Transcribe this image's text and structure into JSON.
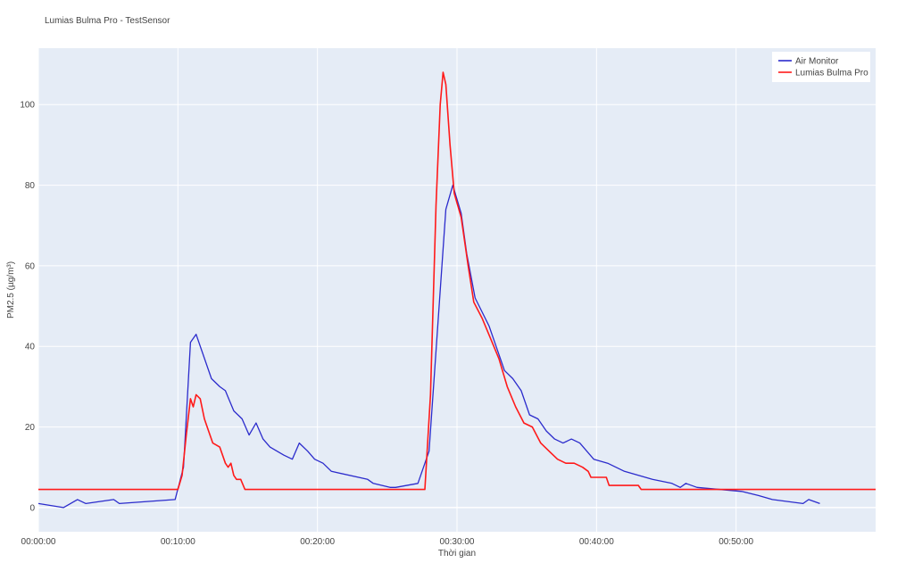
{
  "chart_data": {
    "type": "line",
    "title": "Lumias Bulma Pro - TestSensor",
    "xlabel": "Thời gian",
    "ylabel": "PM2.5 (µg/m³)",
    "xlim_minutes": [
      0,
      60
    ],
    "ylim": [
      -6,
      114
    ],
    "x_ticks": [
      {
        "value": 0,
        "label": "00:00:00"
      },
      {
        "value": 10,
        "label": "00:10:00"
      },
      {
        "value": 20,
        "label": "00:20:00"
      },
      {
        "value": 30,
        "label": "00:30:00"
      },
      {
        "value": 40,
        "label": "00:40:00"
      },
      {
        "value": 50,
        "label": "00:50:00"
      }
    ],
    "y_ticks": [
      0,
      20,
      40,
      60,
      80,
      100
    ],
    "grid": true,
    "legend_position": "top-right",
    "series": [
      {
        "name": "Air Monitor",
        "color": "#2b2bcc",
        "points": [
          [
            0,
            1
          ],
          [
            1.8,
            0
          ],
          [
            2.8,
            2
          ],
          [
            3.4,
            1
          ],
          [
            5.4,
            2
          ],
          [
            5.8,
            1
          ],
          [
            9.8,
            2
          ],
          [
            10.4,
            10
          ],
          [
            10.9,
            41
          ],
          [
            11.3,
            43
          ],
          [
            12.4,
            32
          ],
          [
            13.0,
            30
          ],
          [
            13.4,
            29
          ],
          [
            14.0,
            24
          ],
          [
            14.6,
            22
          ],
          [
            15.1,
            18
          ],
          [
            15.6,
            21
          ],
          [
            16.1,
            17
          ],
          [
            16.6,
            15
          ],
          [
            17.6,
            13
          ],
          [
            18.2,
            12
          ],
          [
            18.7,
            16
          ],
          [
            19.3,
            14
          ],
          [
            19.8,
            12
          ],
          [
            20.4,
            11
          ],
          [
            21.0,
            9
          ],
          [
            23.6,
            7
          ],
          [
            24.0,
            6
          ],
          [
            25.2,
            5
          ],
          [
            25.6,
            5
          ],
          [
            27.2,
            6
          ],
          [
            28.0,
            14
          ],
          [
            29.2,
            74
          ],
          [
            29.7,
            80
          ],
          [
            30.3,
            73
          ],
          [
            30.7,
            63
          ],
          [
            31.3,
            52
          ],
          [
            32.3,
            45
          ],
          [
            33.4,
            34
          ],
          [
            34.0,
            32
          ],
          [
            34.6,
            29
          ],
          [
            35.2,
            23
          ],
          [
            35.8,
            22
          ],
          [
            36.4,
            19
          ],
          [
            37.0,
            17
          ],
          [
            37.6,
            16
          ],
          [
            38.2,
            17
          ],
          [
            38.8,
            16
          ],
          [
            39.8,
            12
          ],
          [
            40.8,
            11
          ],
          [
            42.0,
            9
          ],
          [
            44.0,
            7
          ],
          [
            45.4,
            6
          ],
          [
            46.0,
            5
          ],
          [
            46.4,
            6
          ],
          [
            47.2,
            5
          ],
          [
            50.4,
            4
          ],
          [
            51.6,
            3
          ],
          [
            52.6,
            2
          ],
          [
            54.8,
            1
          ],
          [
            55.2,
            2
          ],
          [
            56.0,
            1
          ]
        ]
      },
      {
        "name": "Lumias Bulma Pro",
        "color": "#ff1a1a",
        "points": [
          [
            0,
            4.5
          ],
          [
            10.0,
            4.5
          ],
          [
            10.3,
            8
          ],
          [
            10.6,
            18
          ],
          [
            10.9,
            27
          ],
          [
            11.1,
            25
          ],
          [
            11.3,
            28
          ],
          [
            11.6,
            27
          ],
          [
            11.9,
            22
          ],
          [
            12.2,
            19
          ],
          [
            12.5,
            16
          ],
          [
            13.0,
            15
          ],
          [
            13.4,
            11
          ],
          [
            13.6,
            10
          ],
          [
            13.8,
            11
          ],
          [
            14.0,
            8
          ],
          [
            14.2,
            7
          ],
          [
            14.5,
            7
          ],
          [
            14.8,
            4.5
          ],
          [
            27.7,
            4.5
          ],
          [
            28.1,
            28
          ],
          [
            28.5,
            75
          ],
          [
            28.8,
            100
          ],
          [
            29.0,
            108
          ],
          [
            29.2,
            105
          ],
          [
            29.5,
            90
          ],
          [
            29.8,
            78
          ],
          [
            30.3,
            72
          ],
          [
            30.8,
            60
          ],
          [
            31.2,
            51
          ],
          [
            31.8,
            47
          ],
          [
            32.4,
            42
          ],
          [
            33.0,
            37
          ],
          [
            33.6,
            30
          ],
          [
            34.2,
            25
          ],
          [
            34.8,
            21
          ],
          [
            35.4,
            20
          ],
          [
            36.0,
            16
          ],
          [
            36.6,
            14
          ],
          [
            37.2,
            12
          ],
          [
            37.8,
            11
          ],
          [
            38.4,
            11
          ],
          [
            39.0,
            10
          ],
          [
            39.4,
            9
          ],
          [
            39.6,
            7.5
          ],
          [
            40.7,
            7.5
          ],
          [
            40.9,
            5.5
          ],
          [
            43.0,
            5.5
          ],
          [
            43.2,
            4.5
          ],
          [
            60,
            4.5
          ]
        ]
      }
    ]
  }
}
